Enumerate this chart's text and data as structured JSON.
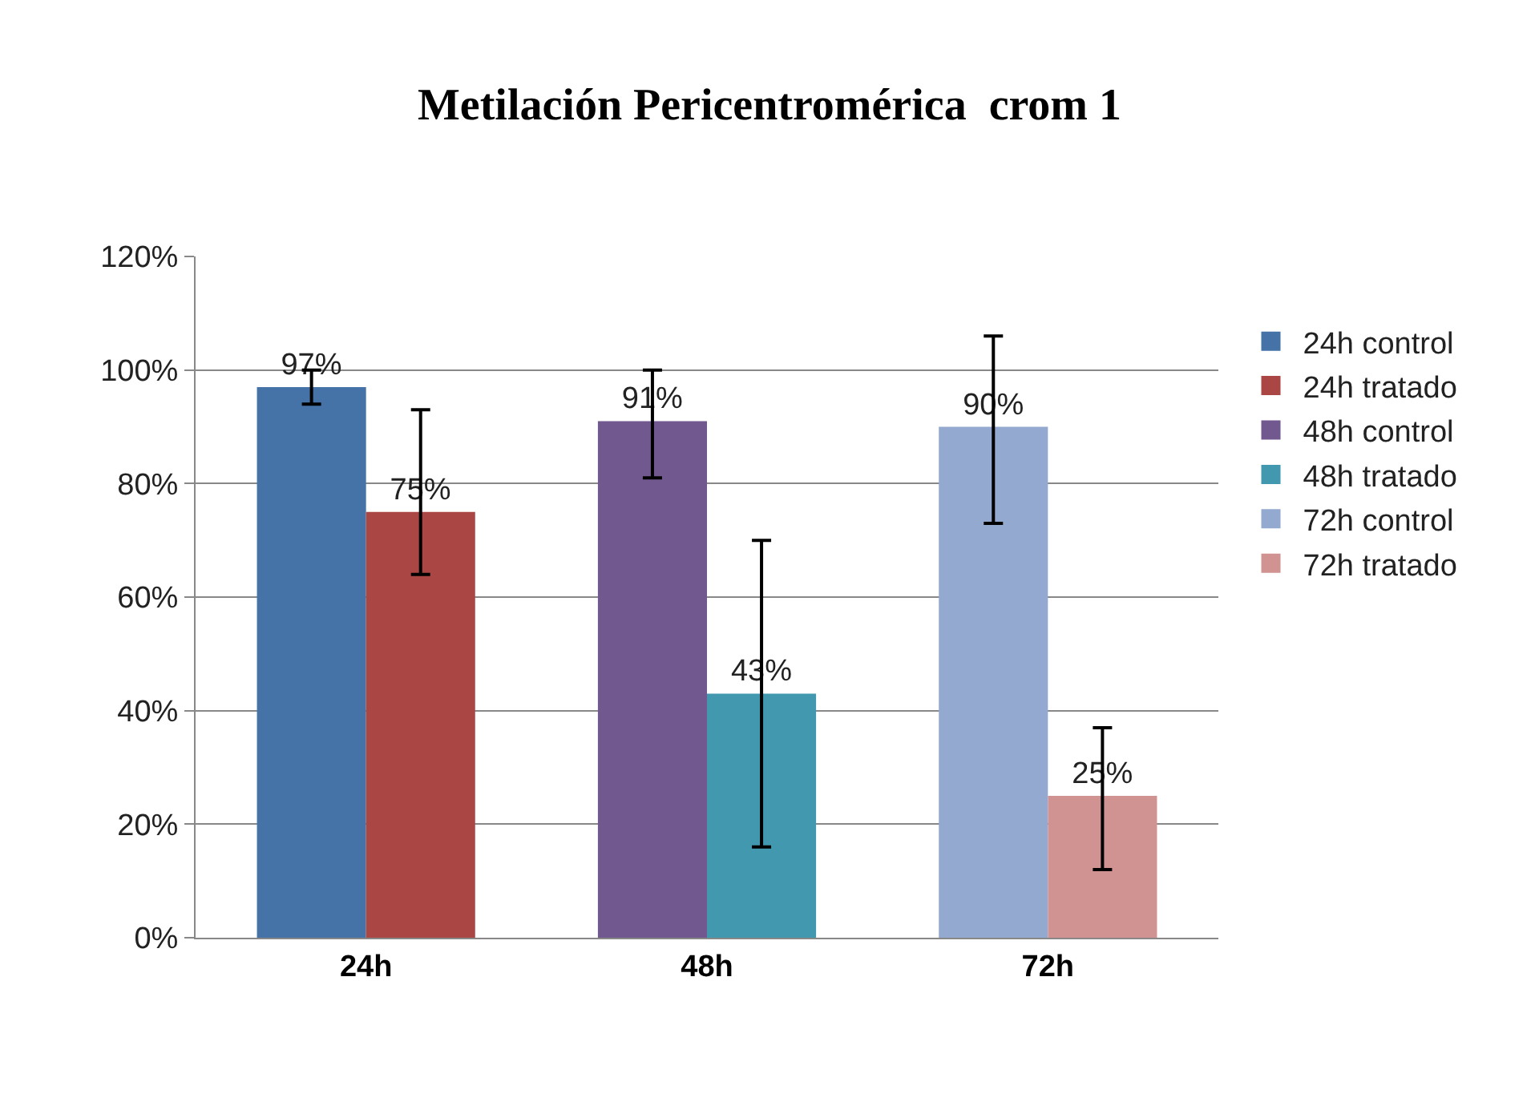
{
  "chart_data": {
    "type": "bar",
    "title": "Metilación Pericentromérica  crom 1",
    "categories": [
      "24h",
      "48h",
      "72h"
    ],
    "series": [
      {
        "name": "24h control",
        "color": "#4572a7",
        "values": [
          97,
          null,
          null
        ],
        "value_labels": [
          "97%",
          null,
          null
        ],
        "errors": [
          [
            94,
            100
          ],
          null,
          null
        ]
      },
      {
        "name": "24h tratado",
        "color": "#aa4643",
        "values": [
          75,
          null,
          null
        ],
        "value_labels": [
          "75%",
          null,
          null
        ],
        "errors": [
          [
            64,
            93
          ],
          null,
          null
        ]
      },
      {
        "name": "48h control",
        "color": "#71588f",
        "values": [
          null,
          91,
          null
        ],
        "value_labels": [
          null,
          "91%",
          null
        ],
        "errors": [
          null,
          [
            81,
            100
          ],
          null
        ]
      },
      {
        "name": "48h tratado",
        "color": "#4198af",
        "values": [
          null,
          43,
          null
        ],
        "value_labels": [
          null,
          "43%",
          null
        ],
        "errors": [
          null,
          [
            16,
            70
          ],
          null
        ]
      },
      {
        "name": "72h control",
        "color": "#93a9cf",
        "values": [
          null,
          null,
          90
        ],
        "value_labels": [
          null,
          null,
          "90%"
        ],
        "errors": [
          null,
          null,
          [
            73,
            106
          ]
        ]
      },
      {
        "name": "72h tratado",
        "color": "#d19392",
        "values": [
          null,
          null,
          25
        ],
        "value_labels": [
          null,
          null,
          "25%"
        ],
        "errors": [
          null,
          null,
          [
            12,
            37
          ]
        ]
      }
    ],
    "ylim": [
      0,
      120
    ],
    "yticks": [
      {
        "value": 0,
        "label": "0%"
      },
      {
        "value": 20,
        "label": "20%"
      },
      {
        "value": 40,
        "label": "40%"
      },
      {
        "value": 60,
        "label": "60%"
      },
      {
        "value": 80,
        "label": "80%"
      },
      {
        "value": 100,
        "label": "100%"
      },
      {
        "value": 120,
        "label": "120%"
      }
    ],
    "grid": "y",
    "legend": "right"
  }
}
